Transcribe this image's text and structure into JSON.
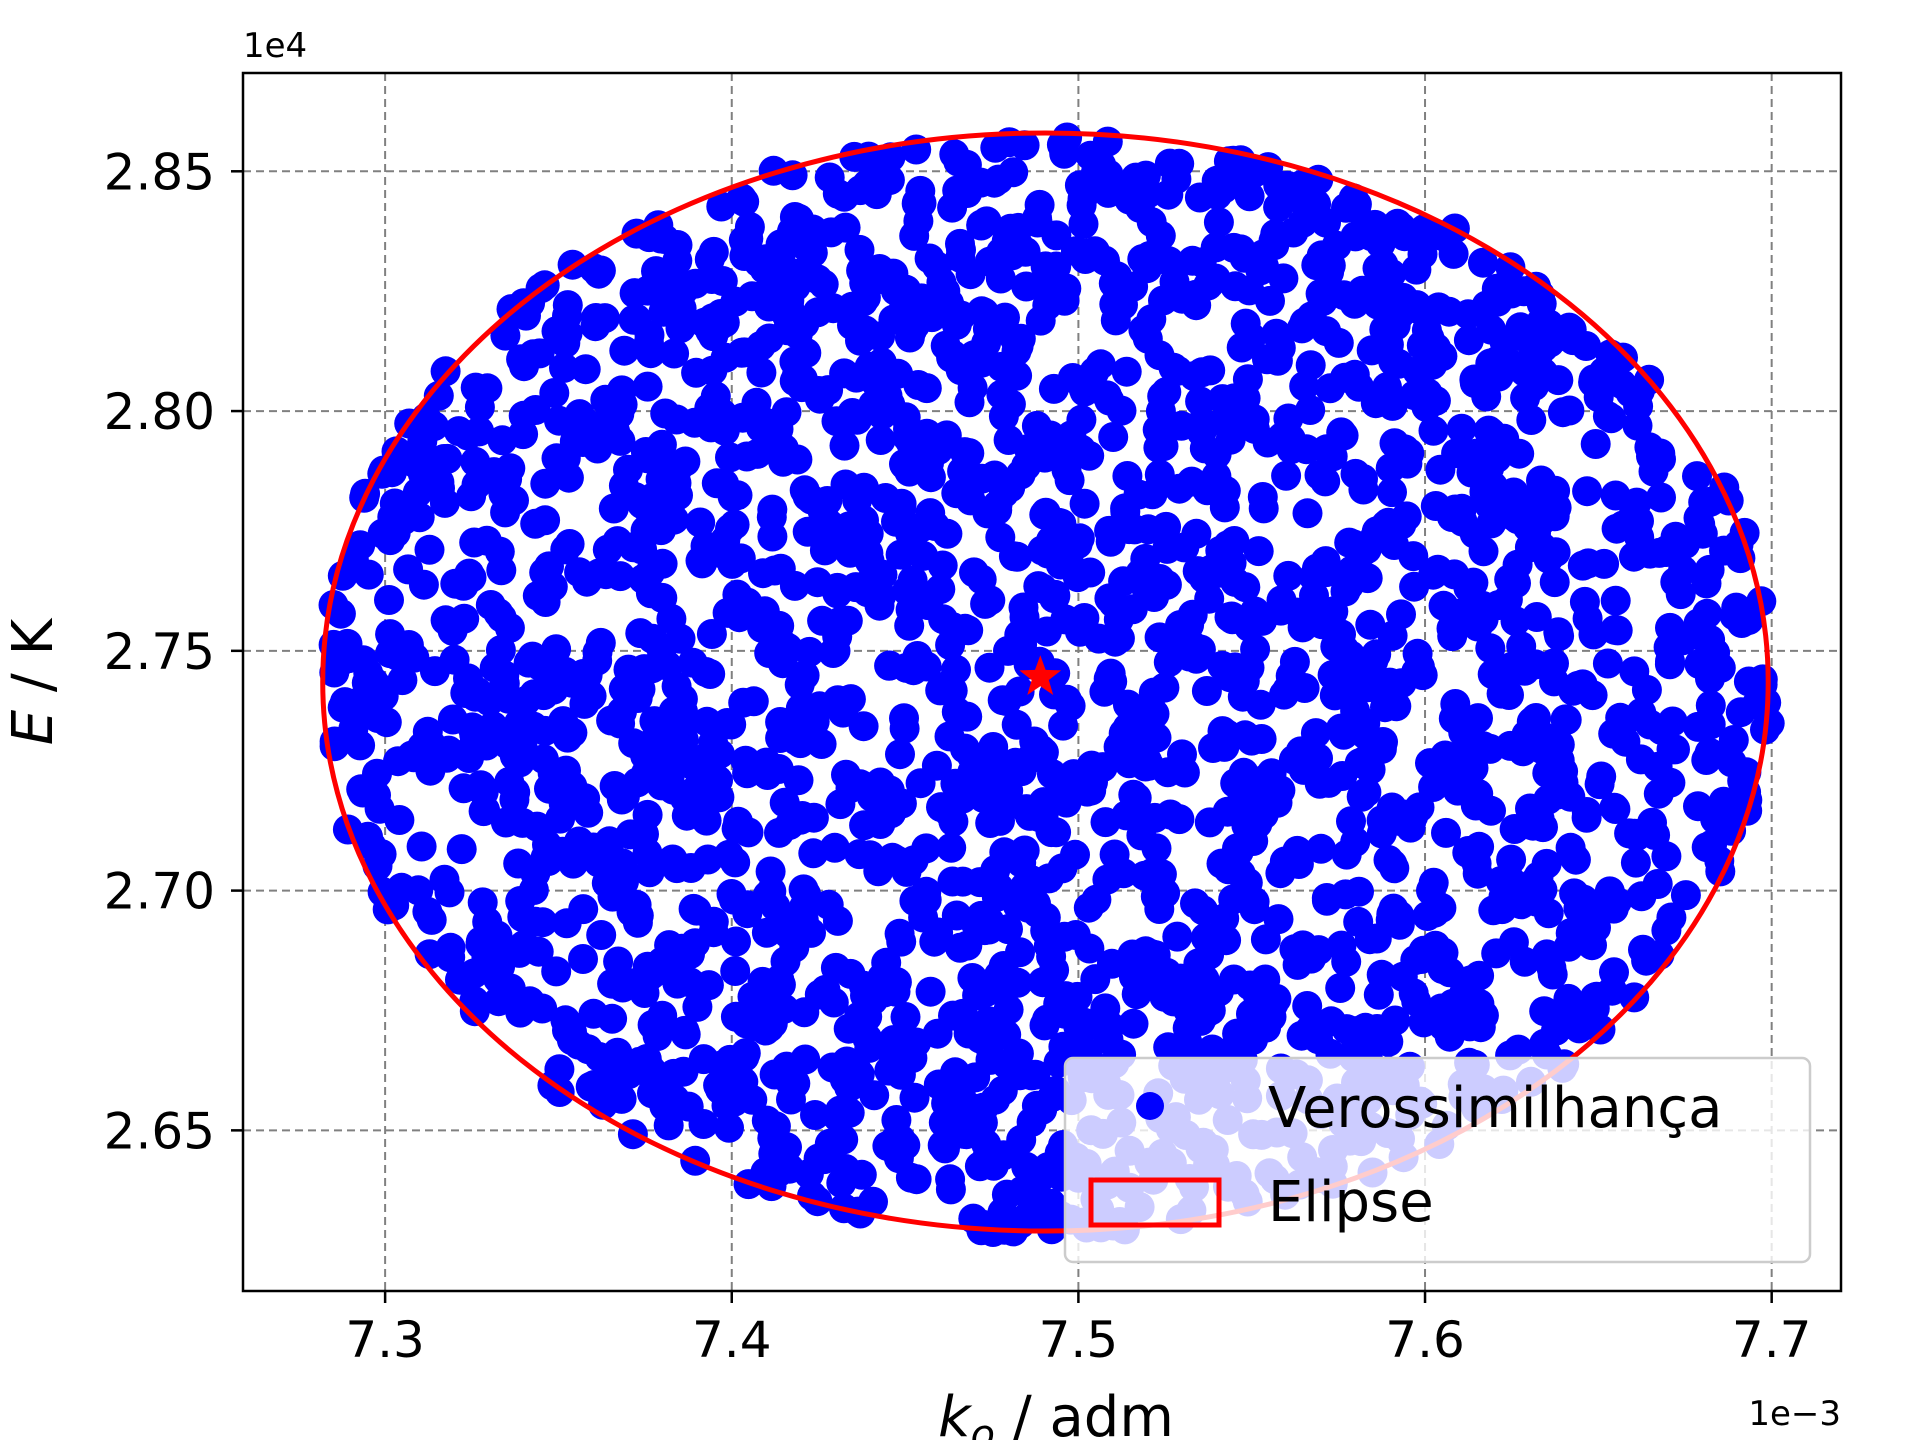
{
  "chart_data": {
    "type": "scatter",
    "xlabel_main": "k",
    "xlabel_sub": "o",
    "xlabel_rest": " / adm",
    "ylabel_main": "E",
    "ylabel_rest": " / K",
    "x_offset_label": "1e−3",
    "y_offset_label": "1e4",
    "x_ticks": [
      7.3,
      7.4,
      7.5,
      7.6,
      7.7
    ],
    "x_tick_labels": [
      "7.3",
      "7.4",
      "7.5",
      "7.6",
      "7.7"
    ],
    "y_ticks": [
      2.65,
      2.7,
      2.75,
      2.8,
      2.85
    ],
    "y_tick_labels": [
      "2.65",
      "2.70",
      "2.75",
      "2.80",
      "2.85"
    ],
    "xlim": [
      7.259,
      7.72
    ],
    "ylim": [
      2.6165,
      2.8705
    ],
    "x_units": "1e-3",
    "y_units": "1e4",
    "grid": true,
    "legend_position": "lower-right",
    "series": [
      {
        "name": "Verossimilhança",
        "kind": "scatter-cloud",
        "color": "#0000ff",
        "marker": "circle",
        "n_points": 2500,
        "seed": 7,
        "region": {
          "center_x": 7.4905,
          "center_y": 2.7435,
          "semi_axis_x": 0.2085,
          "semi_axis_y": 0.1145,
          "angle_deg": 0
        }
      },
      {
        "name": "Elipse",
        "kind": "ellipse-outline",
        "color": "#ff0000",
        "center_x": 7.4905,
        "center_y": 2.7435,
        "semi_axis_x": 0.2085,
        "semi_axis_y": 0.1145,
        "angle_deg": 0
      }
    ],
    "point_estimate": {
      "x": 7.489,
      "y": 2.7445,
      "marker": "star",
      "color": "#ff0000"
    }
  }
}
